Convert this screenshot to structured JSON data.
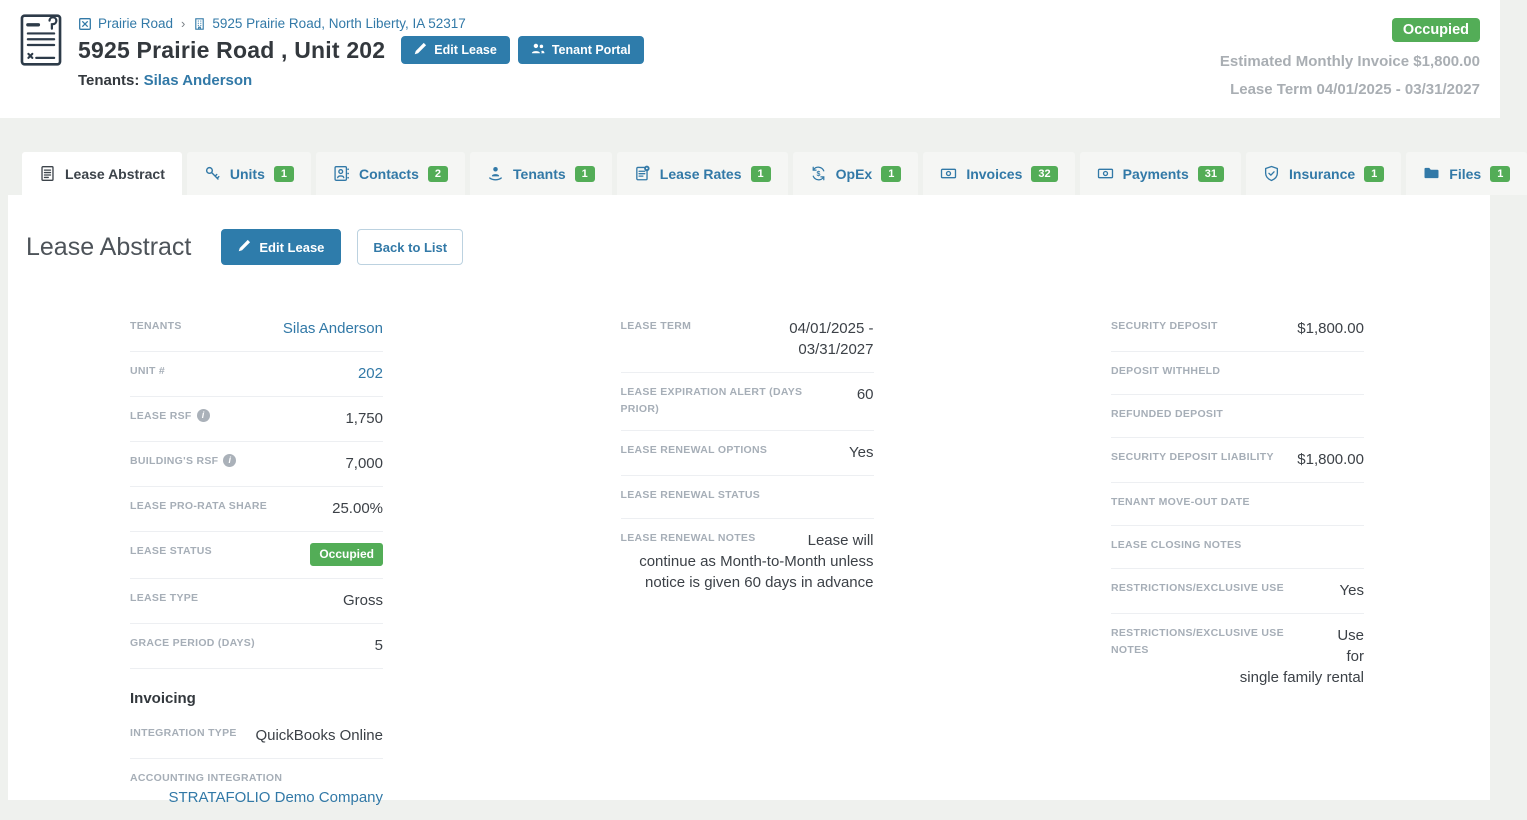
{
  "header": {
    "breadcrumb": {
      "items": [
        {
          "icon": "portfolio-icon",
          "label": "Prairie Road"
        },
        {
          "icon": "building-icon",
          "label": "5925 Prairie Road, North Liberty, IA 52317"
        }
      ],
      "separator": "›"
    },
    "title": "5925 Prairie Road , Unit 202",
    "buttons": {
      "edit_lease": "Edit Lease",
      "tenant_portal": "Tenant Portal"
    },
    "tenants_label": "Tenants:",
    "tenants_value": "Silas Anderson",
    "status_badge": "Occupied",
    "estimated_monthly_invoice": "Estimated Monthly Invoice $1,800.00",
    "lease_term_summary": "Lease Term 04/01/2025 - 03/31/2027"
  },
  "tabs": [
    {
      "label": "Lease Abstract",
      "icon": "lease-abstract-icon",
      "active": true
    },
    {
      "label": "Units",
      "icon": "key-icon",
      "count": "1"
    },
    {
      "label": "Contacts",
      "icon": "contact-card-icon",
      "count": "2"
    },
    {
      "label": "Tenants",
      "icon": "tenant-icon",
      "count": "1"
    },
    {
      "label": "Lease Rates",
      "icon": "lease-rates-icon",
      "count": "1"
    },
    {
      "label": "OpEx",
      "icon": "opex-icon",
      "count": "1"
    },
    {
      "label": "Invoices",
      "icon": "money-icon",
      "count": "32"
    },
    {
      "label": "Payments",
      "icon": "money-icon",
      "count": "31"
    },
    {
      "label": "Insurance",
      "icon": "shield-icon",
      "count": "1"
    },
    {
      "label": "Files",
      "icon": "folder-icon",
      "count": "1"
    }
  ],
  "main": {
    "heading": "Lease Abstract",
    "edit_lease_button": "Edit Lease",
    "back_to_list_button": "Back to List",
    "columns": [
      {
        "rows": [
          {
            "label": "TENANTS",
            "value": "Silas Anderson",
            "type": "link"
          },
          {
            "label": "UNIT #",
            "value": "202",
            "type": "link"
          },
          {
            "label": "LEASE RSF",
            "info": true,
            "value": "1,750"
          },
          {
            "label": "BUILDING'S RSF",
            "info": true,
            "value": "7,000"
          },
          {
            "label": "LEASE PRO-RATA SHARE",
            "value": "25.00%"
          },
          {
            "label": "LEASE STATUS",
            "value": "Occupied",
            "type": "badge"
          },
          {
            "label": "LEASE TYPE",
            "value": "Gross"
          },
          {
            "label": "GRACE PERIOD (DAYS)",
            "value": "5"
          },
          {
            "section": "Invoicing"
          },
          {
            "label": "INTEGRATION TYPE",
            "value": "QuickBooks Online"
          },
          {
            "label": "ACCOUNTING INTEGRATION",
            "value": "STRATAFOLIO Demo Company",
            "type": "link"
          }
        ]
      },
      {
        "rows": [
          {
            "label": "LEASE TERM",
            "value": "04/01/2025 - 03/31/2027"
          },
          {
            "label": "LEASE EXPIRATION ALERT (DAYS PRIOR)",
            "value": "60"
          },
          {
            "label": "LEASE RENEWAL OPTIONS",
            "value": "Yes"
          },
          {
            "label": "LEASE RENEWAL STATUS",
            "value": ""
          },
          {
            "label": "LEASE RENEWAL NOTES",
            "value": "Lease will continue as Month-to-Month unless notice is given 60 days in advance"
          }
        ]
      },
      {
        "rows": [
          {
            "label": "SECURITY DEPOSIT",
            "value": "$1,800.00"
          },
          {
            "label": "DEPOSIT WITHHELD",
            "value": ""
          },
          {
            "label": "REFUNDED DEPOSIT",
            "value": ""
          },
          {
            "label": "SECURITY DEPOSIT LIABILITY",
            "value": "$1,800.00"
          },
          {
            "label": "TENANT MOVE-OUT DATE",
            "value": ""
          },
          {
            "label": "LEASE CLOSING NOTES",
            "value": ""
          },
          {
            "label": "RESTRICTIONS/EXCLUSIVE USE",
            "value": "Yes"
          },
          {
            "label": "RESTRICTIONS/EXCLUSIVE USE NOTES",
            "value": "Use for single family rental"
          }
        ]
      }
    ]
  },
  "colors": {
    "accent_blue": "#2e7cab",
    "link_blue": "#3279a7",
    "status_green": "#53ad57",
    "label_gray": "#a6aeb7",
    "page_background": "#eff1ee"
  }
}
